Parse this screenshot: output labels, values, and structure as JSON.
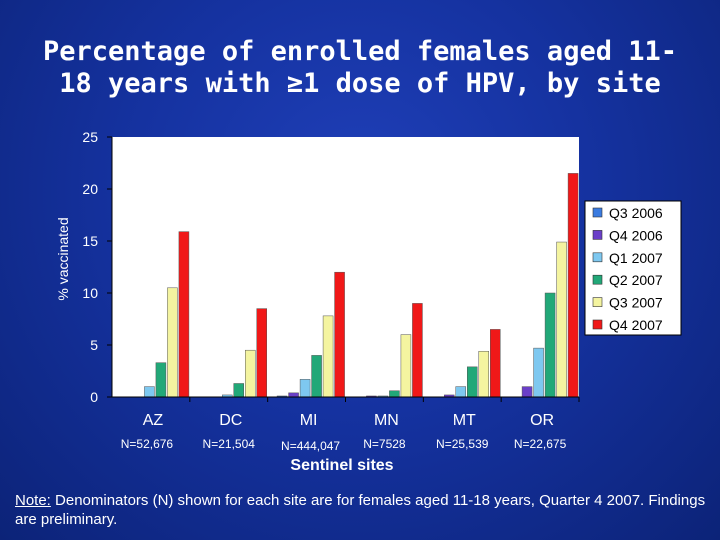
{
  "title_line1": "Percentage of enrolled females aged 11-",
  "title_line2": "18 years with ≥1 dose of HPV, by site",
  "note_label": "Note:",
  "note_text": " Denominators (N) shown for each site are for females aged 11-18 years, Quarter 4 2007.  Findings are preliminary.",
  "colors": [
    "#3a7be0",
    "#6a3fc8",
    "#7ec8f0",
    "#22a878",
    "#f4f4a0",
    "#f01818"
  ],
  "chart_data": {
    "type": "bar",
    "title": "Percentage of enrolled females aged 11-18 years with ≥1 dose of HPV, by site",
    "xlabel": "Sentinel sites",
    "ylabel": "% vaccinated",
    "ylim": [
      0,
      25
    ],
    "yticks": [
      "0",
      "5",
      "10",
      "15",
      "20",
      "25"
    ],
    "categories": [
      "AZ",
      "DC",
      "MI",
      "MN",
      "MT",
      "OR"
    ],
    "denominators": [
      "N=52,676",
      "N=21,504",
      "N=444,047",
      "N=7528",
      "N=25,539",
      "N=22,675"
    ],
    "legend_position": "right",
    "series": [
      {
        "name": "Q3 2006",
        "values": [
          0,
          0,
          0.1,
          0,
          0,
          0
        ]
      },
      {
        "name": "Q4 2006",
        "values": [
          0,
          0,
          0.4,
          0.1,
          0.2,
          1.0
        ]
      },
      {
        "name": "Q1 2007",
        "values": [
          1.0,
          0.2,
          1.7,
          0.1,
          1.0,
          4.7
        ]
      },
      {
        "name": "Q2 2007",
        "values": [
          3.3,
          1.3,
          4.0,
          0.6,
          2.9,
          10.0
        ]
      },
      {
        "name": "Q3 2007",
        "values": [
          10.5,
          4.5,
          7.8,
          6.0,
          4.4,
          14.9
        ]
      },
      {
        "name": "Q4 2007",
        "values": [
          15.9,
          8.5,
          12.0,
          9.0,
          6.5,
          21.5
        ]
      }
    ]
  }
}
